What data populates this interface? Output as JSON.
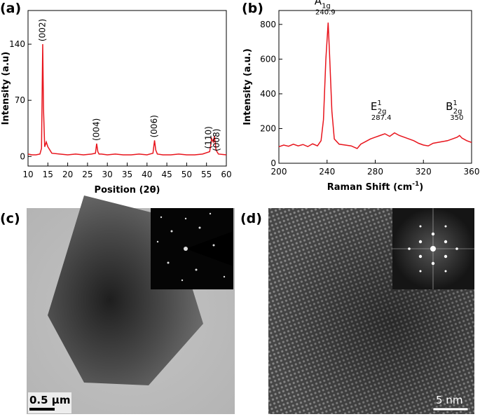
{
  "chart_data": [
    {
      "type": "line",
      "panel": "(a)",
      "xlabel": "Position (2θ)",
      "ylabel": "Intensity (a.u)",
      "xlim": [
        10,
        60
      ],
      "xticks": [
        10,
        15,
        20,
        25,
        30,
        35,
        40,
        45,
        50,
        55,
        60
      ],
      "ylim": [
        -12,
        182
      ],
      "yticks": [
        0,
        70,
        140
      ],
      "color": "#e8141c",
      "x": [
        10,
        11,
        12,
        13,
        13.4,
        13.7,
        13.9,
        14.2,
        14.6,
        15,
        16,
        18,
        20,
        22,
        24,
        26,
        27,
        27.3,
        27.6,
        27.9,
        28.5,
        30,
        32,
        34,
        36,
        38,
        40,
        41.5,
        41.9,
        42.2,
        42.6,
        44,
        46,
        48,
        50,
        52,
        54,
        55.8,
        56.3,
        56.7,
        57,
        57.4,
        58,
        60
      ],
      "values": [
        3,
        2,
        2,
        3,
        10,
        140,
        60,
        12,
        18,
        12,
        4,
        3,
        2,
        3,
        2,
        3,
        4,
        16,
        6,
        3,
        3,
        2,
        3,
        2,
        2,
        3,
        2,
        4,
        20,
        8,
        3,
        2,
        2,
        3,
        2,
        2,
        3,
        6,
        22,
        18,
        25,
        8,
        3,
        2
      ],
      "annotations": [
        {
          "text": "(002)",
          "x": 13.7
        },
        {
          "text": "(004)",
          "x": 27.3
        },
        {
          "text": "(006)",
          "x": 41.9
        },
        {
          "text": "(110)",
          "x": 55.6
        },
        {
          "text": "(008)",
          "x": 57.6
        }
      ]
    },
    {
      "type": "line",
      "panel": "(b)",
      "xlabel": "Raman Shift (cm",
      "xlabel_sup": "-1",
      "xlabel_end": ")",
      "ylabel": "Intensity (a.u.)",
      "xlim": [
        200,
        360
      ],
      "xticks": [
        200,
        240,
        280,
        320,
        360
      ],
      "ylim": [
        0,
        880
      ],
      "yticks": [
        0,
        200,
        400,
        600,
        800
      ],
      "color": "#e8141c",
      "x": [
        200,
        204,
        208,
        212,
        216,
        220,
        224,
        228,
        232,
        235,
        237,
        239,
        240.9,
        242,
        244,
        246,
        250,
        255,
        260,
        265,
        268,
        272,
        276,
        280,
        284,
        288,
        292,
        296,
        300,
        304,
        308,
        312,
        316,
        320,
        324,
        328,
        332,
        336,
        340,
        344,
        348,
        350,
        352,
        356,
        360
      ],
      "values": [
        95,
        105,
        98,
        110,
        100,
        108,
        96,
        112,
        100,
        130,
        250,
        600,
        810,
        640,
        300,
        140,
        110,
        105,
        100,
        85,
        110,
        125,
        140,
        150,
        160,
        170,
        155,
        175,
        160,
        150,
        140,
        130,
        115,
        105,
        100,
        115,
        120,
        125,
        130,
        140,
        150,
        160,
        145,
        130,
        120
      ],
      "annotations": [
        {
          "label": "A",
          "sub": "1g",
          "shift": 240.9
        },
        {
          "label": "E",
          "sup": "1",
          "sub": "2g",
          "shift": 287.4
        },
        {
          "label": "B",
          "sup": "1",
          "sub": "2g",
          "shift": 350
        }
      ]
    }
  ],
  "images": [
    {
      "panel": "(c)",
      "scale_bar": "0.5 μm"
    },
    {
      "panel": "(d)",
      "scale_bar": "5 nm"
    }
  ]
}
